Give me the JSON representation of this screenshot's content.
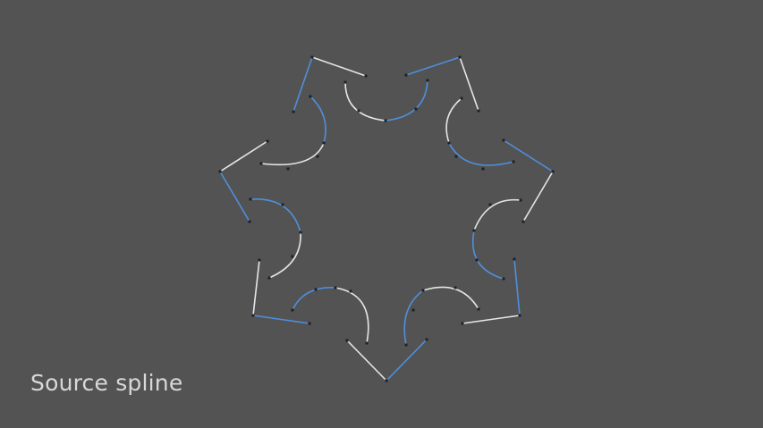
{
  "caption": "Source spline",
  "colors": {
    "background": "#535353",
    "segment_white": "#e6e6e6",
    "segment_blue": "#4f8fdc",
    "vertex": "#1e2126",
    "caption": "#d8d8d8"
  }
}
